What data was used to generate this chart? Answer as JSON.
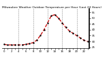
{
  "title": "Milwaukee Weather Outdoor Temperature per Hour (Last 24 Hours)",
  "hours": [
    0,
    1,
    2,
    3,
    4,
    5,
    6,
    7,
    8,
    9,
    10,
    11,
    12,
    13,
    14,
    15,
    16,
    17,
    18,
    19,
    20,
    21,
    22,
    23
  ],
  "temps": [
    27.5,
    27,
    27,
    27,
    27,
    27,
    27.5,
    28,
    29,
    31,
    35,
    40,
    46,
    52,
    53,
    50,
    46,
    42,
    39,
    37,
    35,
    33,
    31,
    30
  ],
  "line_color": "#cc0000",
  "marker_color": "#000000",
  "bg_color": "#ffffff",
  "grid_color": "#888888",
  "ylim_min": 24,
  "ylim_max": 58,
  "yticks": [
    25,
    30,
    35,
    40,
    45,
    50,
    55
  ],
  "ytick_labels": [
    "25",
    "30",
    "35",
    "40",
    "45",
    "50",
    "55"
  ],
  "title_fontsize": 3.2,
  "tick_fontsize": 2.8,
  "linewidth": 0.9,
  "markersize": 1.4
}
